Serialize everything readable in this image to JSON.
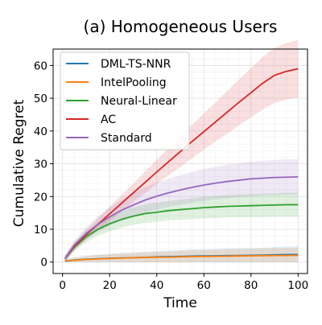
{
  "chart_data": {
    "type": "line",
    "title": "(a) Homogeneous Users",
    "xlabel": "Time",
    "ylabel": "Cumulative Regret",
    "xlim": [
      -4,
      104
    ],
    "ylim": [
      -3.5,
      65
    ],
    "xticks": [
      0,
      20,
      40,
      60,
      80,
      100
    ],
    "yticks": [
      0,
      10,
      20,
      30,
      40,
      50,
      60
    ],
    "grid": true,
    "legend_position": "top-left",
    "x": [
      1,
      5,
      10,
      15,
      20,
      25,
      30,
      35,
      40,
      45,
      50,
      55,
      60,
      65,
      70,
      75,
      80,
      85,
      90,
      95,
      100
    ],
    "series": [
      {
        "name": "DML-TS-NNR",
        "color": "#1f77b4",
        "values": [
          0.3,
          0.6,
          0.85,
          1.0,
          1.15,
          1.25,
          1.35,
          1.45,
          1.55,
          1.65,
          1.7,
          1.8,
          1.85,
          1.9,
          1.95,
          2.0,
          2.05,
          2.1,
          2.2,
          2.25,
          2.3
        ],
        "lower": [
          0.0,
          0.0,
          0.0,
          0.0,
          0.0,
          0.0,
          0.0,
          0.0,
          0.0,
          0.0,
          0.0,
          0.0,
          0.0,
          0.0,
          0.0,
          0.0,
          0.0,
          0.0,
          0.0,
          0.0,
          0.0
        ],
        "upper": [
          0.8,
          1.4,
          1.9,
          2.2,
          2.5,
          2.7,
          2.9,
          3.1,
          3.3,
          3.5,
          3.6,
          3.8,
          3.9,
          4.0,
          4.1,
          4.2,
          4.3,
          4.4,
          4.6,
          4.7,
          4.8
        ]
      },
      {
        "name": "IntelPooling",
        "color": "#ff7f0e",
        "values": [
          0.3,
          0.55,
          0.8,
          0.95,
          1.1,
          1.2,
          1.3,
          1.4,
          1.45,
          1.5,
          1.6,
          1.65,
          1.7,
          1.75,
          1.8,
          1.85,
          1.9,
          1.95,
          2.0,
          2.0,
          2.05
        ],
        "lower": [
          0.0,
          0.0,
          0.0,
          0.0,
          0.0,
          0.0,
          0.0,
          0.0,
          0.0,
          0.0,
          0.0,
          0.0,
          0.0,
          0.0,
          0.0,
          0.0,
          0.0,
          0.0,
          0.0,
          0.0,
          0.0
        ],
        "upper": [
          0.8,
          1.3,
          1.8,
          2.1,
          2.4,
          2.6,
          2.8,
          3.0,
          3.1,
          3.2,
          3.4,
          3.5,
          3.6,
          3.7,
          3.8,
          3.9,
          4.0,
          4.1,
          4.2,
          4.2,
          4.3
        ]
      },
      {
        "name": "Neural-Linear",
        "color": "#2ca02c",
        "values": [
          1.0,
          4.5,
          7.7,
          10.0,
          11.7,
          13.0,
          14.0,
          14.8,
          15.2,
          15.7,
          16.0,
          16.3,
          16.6,
          16.8,
          17.0,
          17.1,
          17.2,
          17.3,
          17.4,
          17.5,
          17.5
        ],
        "lower": [
          0.0,
          3.3,
          6.0,
          8.0,
          9.4,
          10.5,
          11.3,
          12.0,
          12.3,
          12.7,
          12.9,
          13.1,
          13.3,
          13.4,
          13.6,
          13.6,
          13.7,
          13.7,
          13.8,
          13.8,
          13.8
        ],
        "upper": [
          2.0,
          5.8,
          9.4,
          12.0,
          14.0,
          15.5,
          16.7,
          17.6,
          18.1,
          18.7,
          19.1,
          19.5,
          19.9,
          20.2,
          20.4,
          20.6,
          20.7,
          20.9,
          21.0,
          21.2,
          21.2
        ]
      },
      {
        "name": "AC",
        "color": "#d62728",
        "values": [
          1.0,
          4.8,
          8.3,
          11.5,
          14.7,
          17.9,
          21.1,
          24.3,
          27.5,
          30.6,
          33.7,
          36.8,
          39.8,
          42.8,
          45.8,
          48.8,
          51.7,
          54.6,
          57.0,
          58.2,
          59.0
        ],
        "lower": [
          0.0,
          3.6,
          6.8,
          9.7,
          12.5,
          15.4,
          18.3,
          21.0,
          23.8,
          26.5,
          29.0,
          31.7,
          34.3,
          36.8,
          39.3,
          41.8,
          44.2,
          46.6,
          48.6,
          49.6,
          50.2
        ],
        "upper": [
          2.0,
          6.0,
          9.8,
          13.3,
          16.9,
          20.4,
          23.9,
          27.6,
          31.2,
          34.7,
          38.4,
          41.9,
          45.3,
          48.8,
          52.3,
          55.8,
          59.2,
          62.6,
          65.4,
          66.8,
          67.8
        ]
      },
      {
        "name": "Standard",
        "color": "#9467bd",
        "values": [
          1.0,
          5.2,
          8.7,
          11.5,
          13.8,
          15.8,
          17.4,
          18.9,
          20.1,
          21.1,
          22.0,
          22.8,
          23.5,
          24.1,
          24.6,
          25.0,
          25.4,
          25.6,
          25.8,
          25.9,
          26.0
        ],
        "lower": [
          0.0,
          3.8,
          6.8,
          9.1,
          11.0,
          12.6,
          13.9,
          15.0,
          16.0,
          16.8,
          17.5,
          18.1,
          18.6,
          19.1,
          19.5,
          19.8,
          20.1,
          20.3,
          20.4,
          20.5,
          20.6
        ],
        "upper": [
          2.0,
          6.6,
          10.6,
          13.9,
          16.6,
          19.0,
          20.9,
          22.8,
          24.2,
          25.4,
          26.5,
          27.5,
          28.4,
          29.1,
          29.7,
          30.2,
          30.7,
          30.9,
          31.2,
          31.3,
          31.4
        ]
      }
    ]
  }
}
